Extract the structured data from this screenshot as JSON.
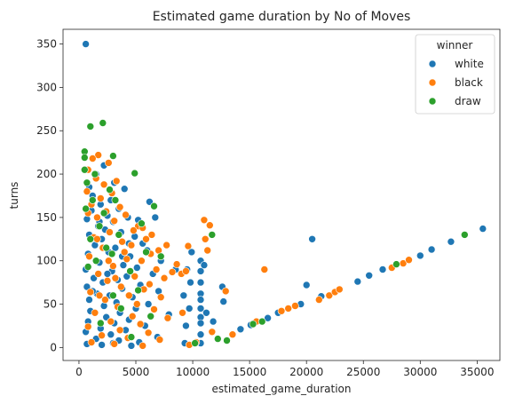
{
  "chart_data": {
    "type": "scatter",
    "title": "Estimated game duration by No of Moves",
    "xlabel": "estimated_game_duration",
    "ylabel": "turns",
    "xlim": [
      -1400,
      37000
    ],
    "ylim": [
      -15,
      367
    ],
    "xticks": [
      0,
      5000,
      10000,
      15000,
      20000,
      25000,
      30000,
      35000
    ],
    "yticks": [
      0,
      50,
      100,
      150,
      200,
      250,
      300,
      350
    ],
    "grid": false,
    "legend": {
      "title": "winner",
      "placement": "top-right"
    },
    "series": [
      {
        "name": "white",
        "color": "#1f77b4",
        "points": [
          [
            600,
            350
          ],
          [
            2200,
            210
          ],
          [
            3100,
            190
          ],
          [
            1500,
            200
          ],
          [
            900,
            185
          ],
          [
            4000,
            183
          ],
          [
            1200,
            175
          ],
          [
            2800,
            170
          ],
          [
            1900,
            165
          ],
          [
            6200,
            168
          ],
          [
            3500,
            160
          ],
          [
            1100,
            158
          ],
          [
            2500,
            152
          ],
          [
            4300,
            150
          ],
          [
            700,
            148
          ],
          [
            3000,
            145
          ],
          [
            5200,
            147
          ],
          [
            1700,
            140
          ],
          [
            6700,
            150
          ],
          [
            2300,
            136
          ],
          [
            3700,
            133
          ],
          [
            900,
            130
          ],
          [
            4900,
            128
          ],
          [
            2000,
            125
          ],
          [
            5600,
            120
          ],
          [
            1400,
            118
          ],
          [
            3200,
            115
          ],
          [
            6000,
            112
          ],
          [
            2600,
            110
          ],
          [
            800,
            108
          ],
          [
            4500,
            105
          ],
          [
            7200,
            100
          ],
          [
            1800,
            98
          ],
          [
            3900,
            95
          ],
          [
            5100,
            92
          ],
          [
            600,
            90
          ],
          [
            2900,
            88
          ],
          [
            6500,
            85
          ],
          [
            4200,
            82
          ],
          [
            1300,
            80
          ],
          [
            3400,
            78
          ],
          [
            8500,
            90
          ],
          [
            2100,
            75
          ],
          [
            5400,
            72
          ],
          [
            700,
            70
          ],
          [
            3800,
            68
          ],
          [
            7000,
            65
          ],
          [
            1600,
            62
          ],
          [
            2700,
            60
          ],
          [
            4700,
            58
          ],
          [
            900,
            55
          ],
          [
            3300,
            52
          ],
          [
            6100,
            50
          ],
          [
            2200,
            48
          ],
          [
            5000,
            45
          ],
          [
            1000,
            42
          ],
          [
            3600,
            40
          ],
          [
            7900,
            38
          ],
          [
            2400,
            35
          ],
          [
            4400,
            32
          ],
          [
            800,
            30
          ],
          [
            3100,
            28
          ],
          [
            5800,
            25
          ],
          [
            1900,
            22
          ],
          [
            4100,
            20
          ],
          [
            600,
            18
          ],
          [
            2800,
            15
          ],
          [
            6900,
            12
          ],
          [
            1500,
            10
          ],
          [
            3500,
            8
          ],
          [
            5300,
            6
          ],
          [
            700,
            4
          ],
          [
            2000,
            3
          ],
          [
            4600,
            2
          ],
          [
            3000,
            5
          ],
          [
            1200,
            65
          ],
          [
            2500,
            85
          ],
          [
            3800,
            105
          ],
          [
            4400,
            120
          ],
          [
            1800,
            145
          ],
          [
            9500,
            90
          ],
          [
            9200,
            60
          ],
          [
            9800,
            75
          ],
          [
            9700,
            45
          ],
          [
            9400,
            25
          ],
          [
            9900,
            110
          ],
          [
            9300,
            5
          ],
          [
            10700,
            100
          ],
          [
            10700,
            88
          ],
          [
            10700,
            75
          ],
          [
            10700,
            62
          ],
          [
            10700,
            55
          ],
          [
            10700,
            45
          ],
          [
            10700,
            35
          ],
          [
            10700,
            28
          ],
          [
            10700,
            15
          ],
          [
            10700,
            5
          ],
          [
            11200,
            40
          ],
          [
            11800,
            30
          ],
          [
            12600,
            70
          ],
          [
            12700,
            53
          ],
          [
            11000,
            95
          ],
          [
            20000,
            72
          ],
          [
            20500,
            125
          ],
          [
            21300,
            59
          ],
          [
            14200,
            21
          ],
          [
            15100,
            26
          ],
          [
            16600,
            34
          ],
          [
            24500,
            76
          ],
          [
            25500,
            83
          ],
          [
            26700,
            90
          ],
          [
            30000,
            106
          ],
          [
            31000,
            113
          ],
          [
            32700,
            122
          ],
          [
            35500,
            137
          ],
          [
            19500,
            50
          ],
          [
            17500,
            40
          ]
        ]
      },
      {
        "name": "black",
        "color": "#ff7f0e",
        "points": [
          [
            1700,
            222
          ],
          [
            1200,
            218
          ],
          [
            2600,
            213
          ],
          [
            800,
            205
          ],
          [
            1500,
            195
          ],
          [
            3300,
            192
          ],
          [
            2200,
            188
          ],
          [
            700,
            180
          ],
          [
            2900,
            178
          ],
          [
            1900,
            172
          ],
          [
            1100,
            165
          ],
          [
            3600,
            162
          ],
          [
            2400,
            157
          ],
          [
            800,
            155
          ],
          [
            4100,
            153
          ],
          [
            1600,
            150
          ],
          [
            3100,
            146
          ],
          [
            5200,
            140
          ],
          [
            5600,
            138
          ],
          [
            4800,
            135
          ],
          [
            2700,
            133
          ],
          [
            6400,
            130
          ],
          [
            1300,
            127
          ],
          [
            5900,
            125
          ],
          [
            3800,
            122
          ],
          [
            4600,
            118
          ],
          [
            7700,
            118
          ],
          [
            2100,
            115
          ],
          [
            7000,
            112
          ],
          [
            6300,
            108
          ],
          [
            900,
            105
          ],
          [
            4200,
            102
          ],
          [
            5500,
            100
          ],
          [
            8600,
            96
          ],
          [
            3000,
            94
          ],
          [
            6800,
            90
          ],
          [
            8200,
            87
          ],
          [
            1700,
            85
          ],
          [
            4900,
            82
          ],
          [
            7500,
            80
          ],
          [
            2500,
            77
          ],
          [
            6200,
            73
          ],
          [
            3700,
            70
          ],
          [
            5700,
            67
          ],
          [
            1000,
            64
          ],
          [
            4400,
            60
          ],
          [
            7200,
            58
          ],
          [
            2300,
            55
          ],
          [
            5100,
            50
          ],
          [
            3400,
            47
          ],
          [
            6600,
            44
          ],
          [
            1400,
            40
          ],
          [
            4700,
            36
          ],
          [
            7800,
            34
          ],
          [
            2800,
            30
          ],
          [
            5400,
            27
          ],
          [
            800,
            24
          ],
          [
            3600,
            20
          ],
          [
            6100,
            17
          ],
          [
            2000,
            14
          ],
          [
            4300,
            11
          ],
          [
            7100,
            9
          ],
          [
            1100,
            6
          ],
          [
            3100,
            4
          ],
          [
            5600,
            2
          ],
          [
            2600,
            100
          ],
          [
            3200,
            80
          ],
          [
            1800,
            60
          ],
          [
            4000,
            110
          ],
          [
            1600,
            125
          ],
          [
            9600,
            117
          ],
          [
            9000,
            85
          ],
          [
            9400,
            88
          ],
          [
            9100,
            40
          ],
          [
            9700,
            3
          ],
          [
            11000,
            147
          ],
          [
            11500,
            141
          ],
          [
            11100,
            125
          ],
          [
            11300,
            112
          ],
          [
            12900,
            65
          ],
          [
            11700,
            18
          ],
          [
            10300,
            6
          ],
          [
            16300,
            90
          ],
          [
            17800,
            42
          ],
          [
            18400,
            45
          ],
          [
            19000,
            48
          ],
          [
            21100,
            55
          ],
          [
            22000,
            60
          ],
          [
            22500,
            64
          ],
          [
            22900,
            67
          ],
          [
            27500,
            92
          ],
          [
            28500,
            97
          ],
          [
            29000,
            101
          ],
          [
            13500,
            15
          ],
          [
            15600,
            30
          ]
        ]
      },
      {
        "name": "draw",
        "color": "#2ca02c",
        "points": [
          [
            500,
            226
          ],
          [
            500,
            219
          ],
          [
            1000,
            255
          ],
          [
            2100,
            259
          ],
          [
            3000,
            221
          ],
          [
            4900,
            201
          ],
          [
            500,
            205
          ],
          [
            700,
            190
          ],
          [
            1200,
            170
          ],
          [
            1800,
            140
          ],
          [
            2400,
            115
          ],
          [
            1500,
            100
          ],
          [
            3500,
            130
          ],
          [
            2200,
            155
          ],
          [
            600,
            160
          ],
          [
            2900,
            108
          ],
          [
            1000,
            125
          ],
          [
            6600,
            163
          ],
          [
            5500,
            143
          ],
          [
            5900,
            110
          ],
          [
            3200,
            170
          ],
          [
            1400,
            200
          ],
          [
            2700,
            182
          ],
          [
            4500,
            88
          ],
          [
            5200,
            66
          ],
          [
            800,
            93
          ],
          [
            3700,
            45
          ],
          [
            6300,
            36
          ],
          [
            1900,
            28
          ],
          [
            4600,
            12
          ],
          [
            7200,
            105
          ],
          [
            3000,
            60
          ],
          [
            11700,
            130
          ],
          [
            12200,
            10
          ],
          [
            15300,
            27
          ],
          [
            13000,
            8
          ],
          [
            27900,
            96
          ],
          [
            33900,
            130
          ],
          [
            16100,
            30
          ],
          [
            10200,
            5
          ]
        ]
      }
    ]
  }
}
